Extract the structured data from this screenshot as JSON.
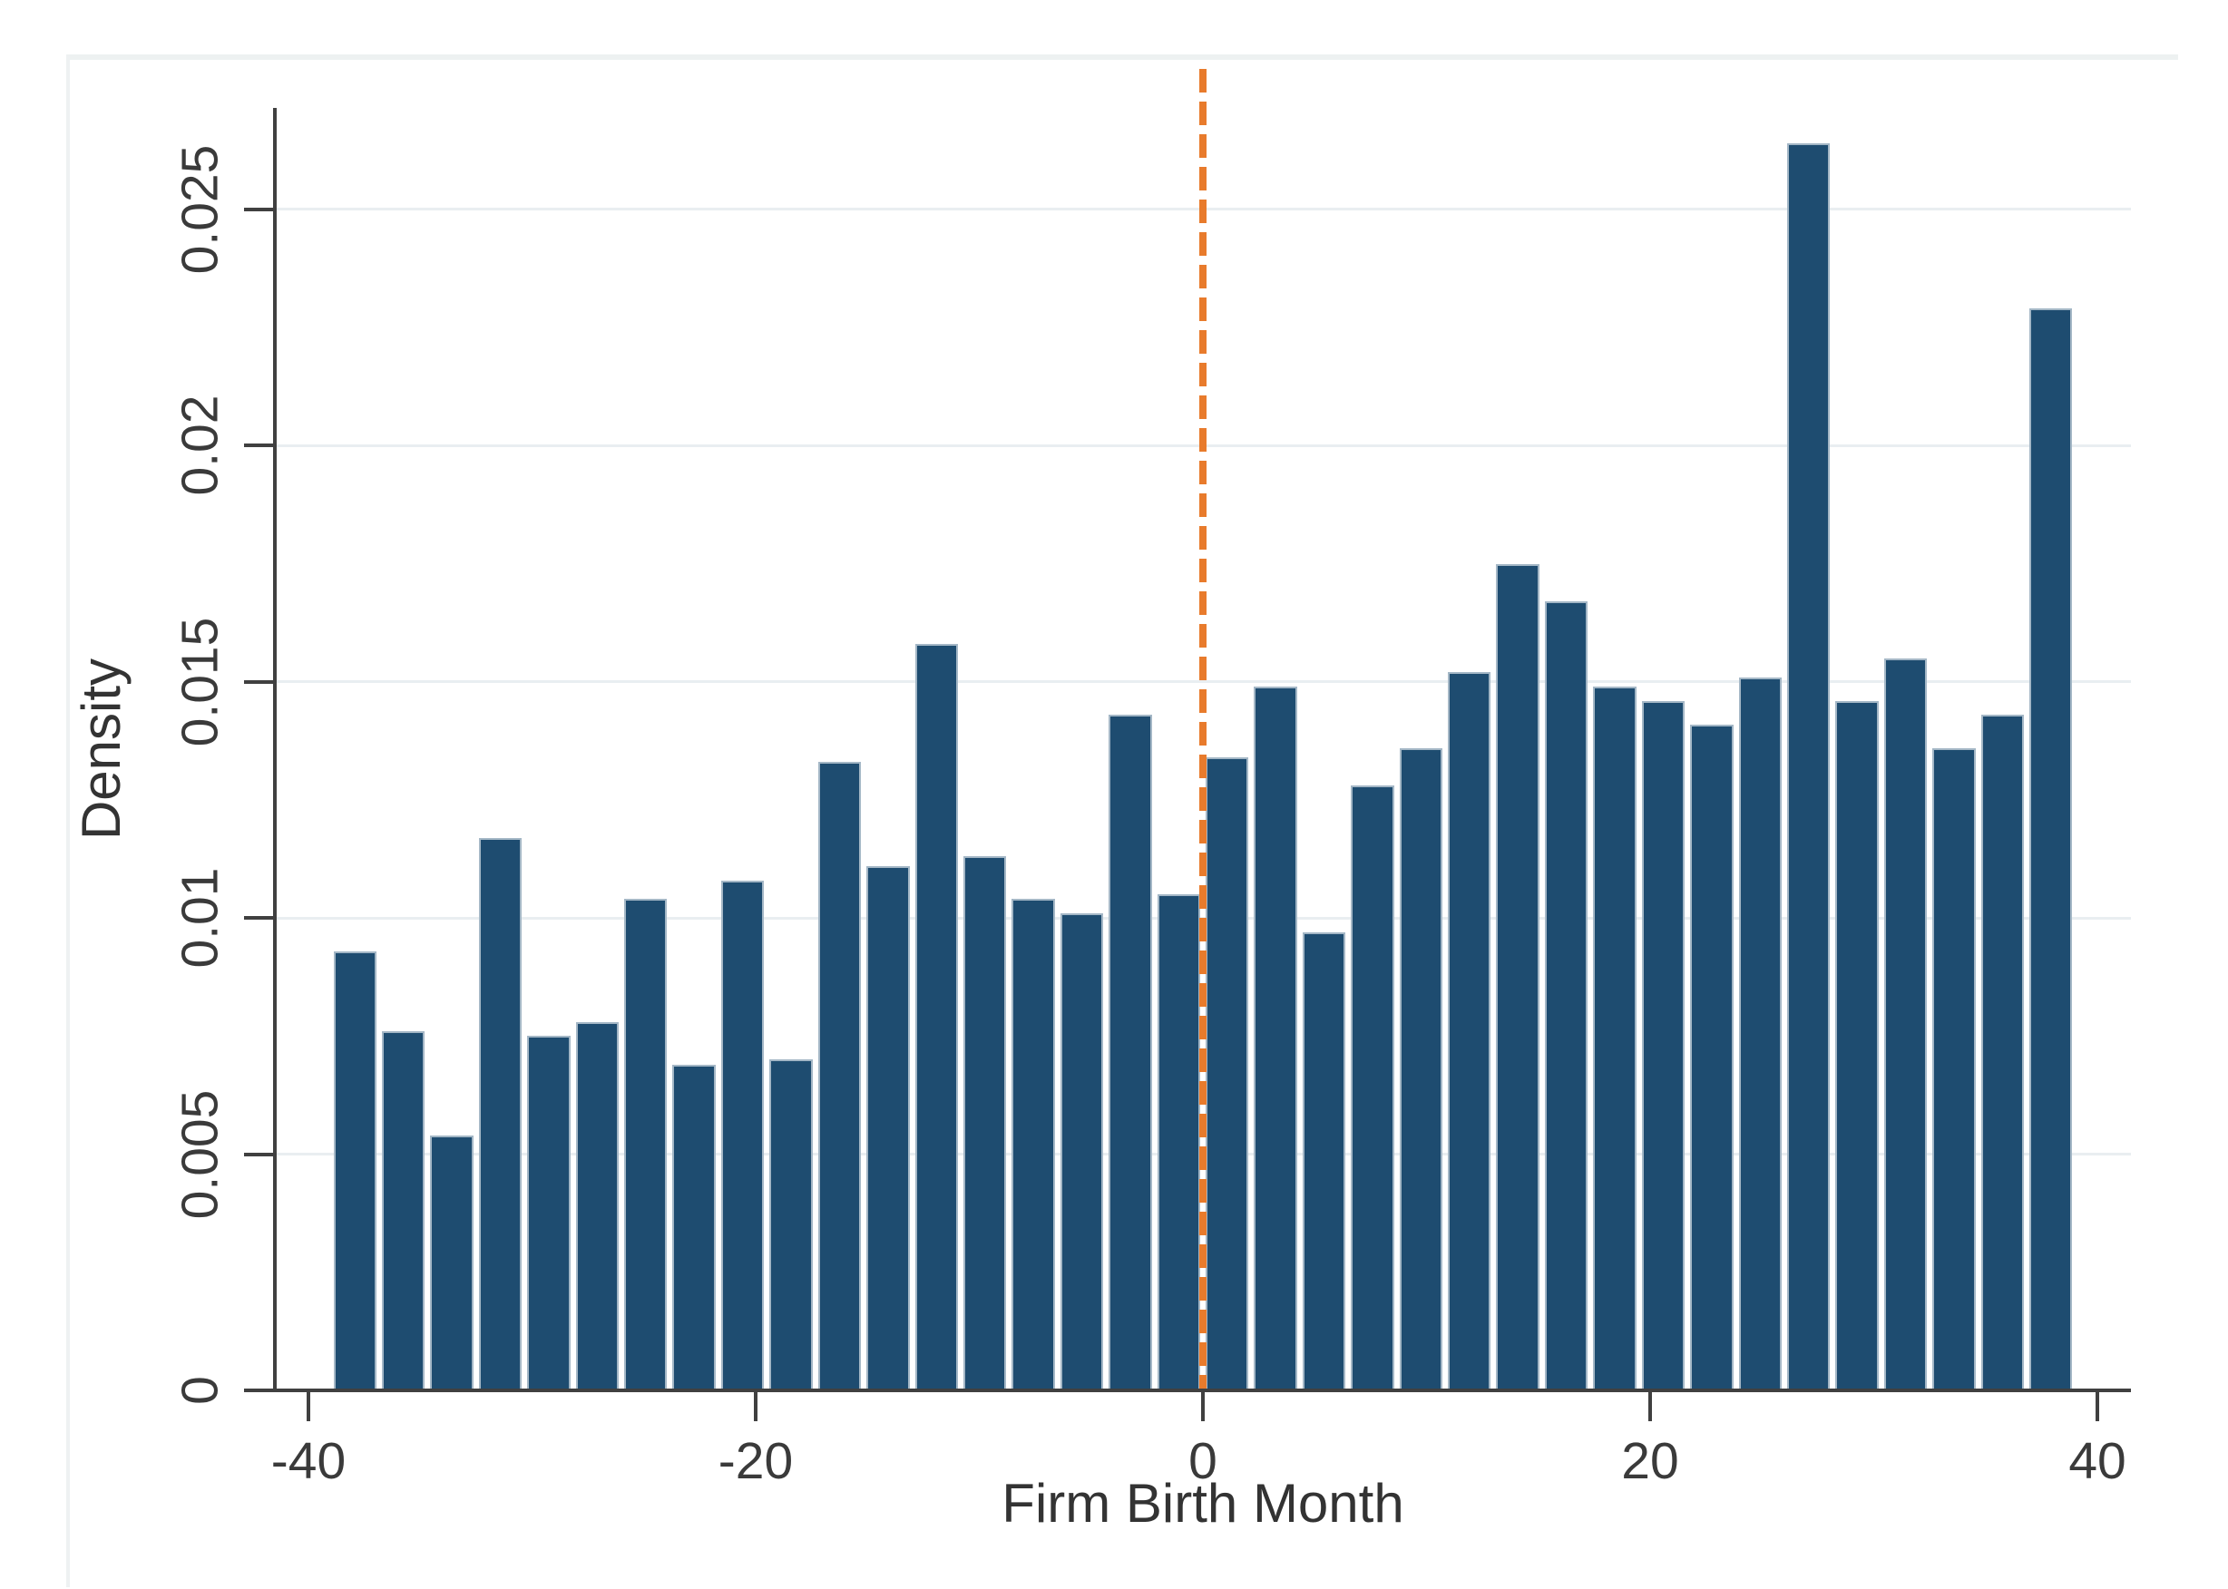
{
  "chart_data": {
    "type": "bar",
    "subtype": "histogram",
    "title": "",
    "xlabel": "Firm Birth Month",
    "ylabel": "Density",
    "bin_start": -39,
    "bin_width": 2.1667,
    "values": [
      0.0093,
      0.0076,
      0.0054,
      0.0117,
      0.0075,
      0.0078,
      0.0104,
      0.0069,
      0.0108,
      0.007,
      0.0133,
      0.0111,
      0.0158,
      0.0113,
      0.0104,
      0.0101,
      0.0143,
      0.0105,
      0.0134,
      0.0149,
      0.0097,
      0.0128,
      0.0136,
      0.0152,
      0.0175,
      0.0167,
      0.0149,
      0.0146,
      0.0141,
      0.0151,
      0.0264,
      0.0146,
      0.0155,
      0.0136,
      0.0143,
      0.0229
    ],
    "x_ticks": {
      "values": [
        -40,
        -20,
        0,
        20,
        40
      ],
      "labels": [
        "-40",
        "-20",
        "0",
        "20",
        "40"
      ]
    },
    "y_ticks": {
      "values": [
        0,
        0.005,
        0.01,
        0.015,
        0.02,
        0.025
      ],
      "labels": [
        "0",
        "0.005",
        "0.01",
        "0.015",
        "0.02",
        "0.025"
      ]
    },
    "xlim": [
      -41.5,
      41.5
    ],
    "ylim": [
      0,
      0.02715
    ],
    "grid": "horizontal",
    "legend": "none",
    "reference_line": {
      "x": 0,
      "orientation": "vertical",
      "style": "dashed",
      "color": "#e87b2c"
    },
    "colors": {
      "bar_fill": "#1e4c70",
      "bar_edge": "#a4b7c6",
      "gridline": "#e9eef1",
      "axis": "#404040",
      "text": "#3a3a3a",
      "vline": "#e87b2c",
      "region_border": "#edf1f1"
    }
  }
}
